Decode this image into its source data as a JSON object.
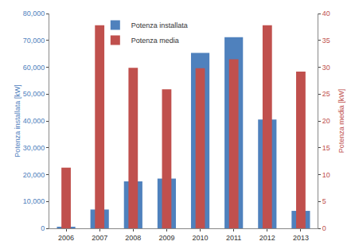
{
  "chart_data": {
    "type": "bar",
    "categories": [
      "2006",
      "2007",
      "2008",
      "2009",
      "2010",
      "2011",
      "2012",
      "2013"
    ],
    "series": [
      {
        "name": "Potenza installata",
        "color": "#4f81bd",
        "axis": "y",
        "values": [
          300,
          7000,
          17500,
          18500,
          65300,
          71200,
          40500,
          6500
        ]
      },
      {
        "name": "Potenza media",
        "color": "#c0504d",
        "axis": "y2",
        "values": [
          11.3,
          37.8,
          29.9,
          25.9,
          29.8,
          31.5,
          37.8,
          29.2
        ]
      }
    ],
    "y_label": "Potenza installata [kW]",
    "y2_label": "Potenza media [kW]",
    "ylim": [
      0,
      80000
    ],
    "yticks": [
      0,
      {
        "value": 10000,
        "label": "10,000"
      },
      {
        "value": 20000,
        "label": "20,000"
      },
      {
        "value": 30000,
        "label": "30,000"
      },
      {
        "value": 40000,
        "label": "40,000"
      },
      {
        "value": 50000,
        "label": "50,000"
      },
      {
        "value": 60000,
        "label": "60,000"
      },
      {
        "value": 70000,
        "label": "70,000"
      },
      {
        "value": 80000,
        "label": "80,000"
      }
    ],
    "y2lim": [
      0,
      40
    ],
    "y2ticks": [
      0,
      5,
      10,
      15,
      20,
      25,
      30,
      35,
      40
    ],
    "grid": false,
    "legend": "top"
  }
}
